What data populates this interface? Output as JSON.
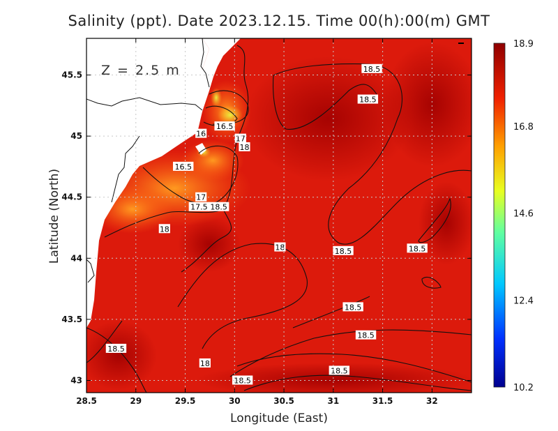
{
  "title": "Salinity (ppt). Date 2023.12.15. Time 00(h):00(m) GMT",
  "depth_label": "Z = 2.5 m",
  "xlabel": "Longitude (East)",
  "ylabel": "Latitude (North)",
  "x_ticks": [
    "28.5",
    "29",
    "29.5",
    "30",
    "30.5",
    "31",
    "31.5",
    "32"
  ],
  "y_ticks": [
    "43",
    "43.5",
    "44",
    "44.5",
    "45",
    "45.5"
  ],
  "colorbar": {
    "ticks": [
      "18.9",
      "16.8",
      "14.6",
      "12.4",
      "10.2"
    ],
    "min": 10.2,
    "max": 18.9,
    "colors": [
      "#00008f",
      "#0060ff",
      "#00e0ff",
      "#80ff80",
      "#ffe000",
      "#ff6000",
      "#e00000",
      "#8f0000"
    ]
  },
  "contour_labels": [
    {
      "text": "18.5",
      "lon": 31.39,
      "lat": 45.55
    },
    {
      "text": "18.5",
      "lon": 31.35,
      "lat": 45.3
    },
    {
      "text": "16.5",
      "lon": 29.9,
      "lat": 45.08
    },
    {
      "text": "16",
      "lon": 29.66,
      "lat": 45.02
    },
    {
      "text": "17",
      "lon": 30.06,
      "lat": 44.98
    },
    {
      "text": "18",
      "lon": 30.1,
      "lat": 44.91
    },
    {
      "text": "16.5",
      "lon": 29.48,
      "lat": 44.75
    },
    {
      "text": "17",
      "lon": 29.66,
      "lat": 44.5
    },
    {
      "text": "17.5",
      "lon": 29.64,
      "lat": 44.42
    },
    {
      "text": "18.5",
      "lon": 29.84,
      "lat": 44.42
    },
    {
      "text": "18",
      "lon": 29.29,
      "lat": 44.24
    },
    {
      "text": "18",
      "lon": 30.46,
      "lat": 44.09
    },
    {
      "text": "18.5",
      "lon": 31.1,
      "lat": 44.06
    },
    {
      "text": "18.5",
      "lon": 31.85,
      "lat": 44.08
    },
    {
      "text": "18.5",
      "lon": 31.2,
      "lat": 43.6
    },
    {
      "text": "18.5",
      "lon": 31.33,
      "lat": 43.37
    },
    {
      "text": "18.5",
      "lon": 28.8,
      "lat": 43.26
    },
    {
      "text": "18",
      "lon": 29.7,
      "lat": 43.14
    },
    {
      "text": "18.5",
      "lon": 31.06,
      "lat": 43.08
    },
    {
      "text": "18.5",
      "lon": 30.08,
      "lat": 43.0
    }
  ]
}
